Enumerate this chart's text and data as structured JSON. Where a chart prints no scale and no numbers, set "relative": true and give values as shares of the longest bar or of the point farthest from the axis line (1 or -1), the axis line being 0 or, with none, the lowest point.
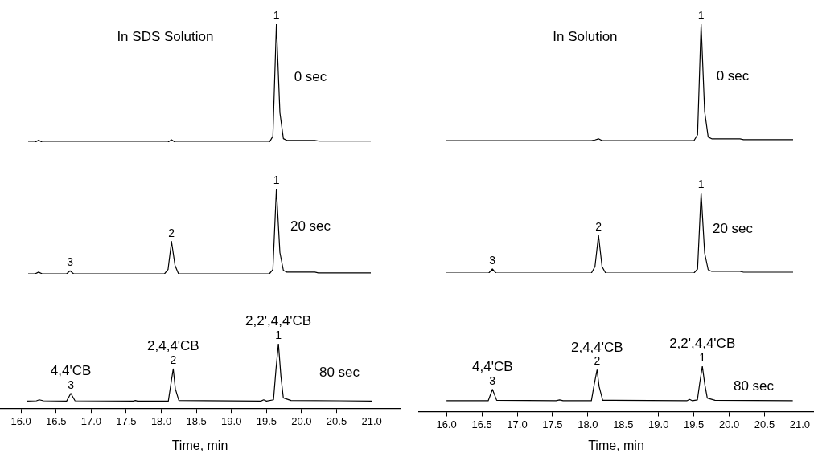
{
  "chart_data": [
    {
      "type": "line",
      "relative": true,
      "title": "In SDS Solution",
      "color": "#000000",
      "tick_labels": false,
      "categories": [
        null,
        null,
        null,
        null,
        null,
        null,
        null,
        null,
        null,
        null,
        null,
        null,
        null,
        null,
        null,
        null,
        null,
        null,
        null,
        null,
        null,
        null,
        null,
        null,
        null,
        null,
        null,
        null,
        null,
        null,
        null,
        null,
        null,
        null,
        null,
        null,
        null,
        null,
        null,
        null,
        null,
        null,
        null,
        null,
        null,
        null,
        null,
        null,
        null,
        null,
        null,
        null,
        null,
        null,
        null,
        null,
        null,
        null,
        null,
        null,
        null,
        null,
        null,
        null,
        null,
        null,
        null,
        null,
        null,
        null,
        null,
        null,
        null,
        null,
        null,
        null,
        null,
        null,
        null,
        null,
        null,
        null,
        null,
        null,
        null,
        null,
        null,
        null,
        null,
        null,
        null,
        null,
        null,
        null,
        null,
        null,
        null,
        null,
        null
      ],
      "values": [
        0,
        0,
        0,
        0.016,
        0,
        0,
        0,
        0,
        0,
        0,
        0,
        0,
        0,
        0,
        0,
        0,
        0,
        0,
        0,
        0,
        0,
        0,
        0,
        0,
        0,
        0,
        0,
        0,
        0,
        0,
        0,
        0,
        0,
        0,
        0,
        0,
        0,
        0,
        0,
        0,
        0,
        0.02,
        0,
        0,
        0,
        0,
        0,
        0,
        0,
        0,
        0,
        0,
        0,
        0,
        0,
        0,
        0,
        0,
        0,
        0,
        0,
        0,
        0,
        0,
        0,
        0,
        0,
        0,
        0,
        0,
        0.05,
        1,
        0.25,
        0.03,
        0.015,
        0.015,
        0.015,
        0.015,
        0.015,
        0.015,
        0.015,
        0.015,
        0.015,
        0.01,
        0.01,
        0.01,
        0.01,
        0.01,
        0.01,
        0.01,
        0.01,
        0.01,
        0.01,
        0.01,
        0.01,
        0.01,
        0.01,
        0.01,
        0.01
      ],
      "subtitle": "0 sec",
      "annotations": [
        "1"
      ]
    },
    {
      "type": "line",
      "relative": true,
      "color": "#000000",
      "tick_labels": false,
      "categories": [
        null,
        null,
        null,
        null,
        null,
        null,
        null,
        null,
        null,
        null,
        null,
        null,
        null,
        null,
        null,
        null,
        null,
        null,
        null,
        null,
        null,
        null,
        null,
        null,
        null,
        null,
        null,
        null,
        null,
        null,
        null,
        null,
        null,
        null,
        null,
        null,
        null,
        null,
        null,
        null,
        null,
        null,
        null,
        null,
        null,
        null,
        null,
        null,
        null,
        null,
        null,
        null,
        null,
        null,
        null,
        null,
        null,
        null,
        null,
        null,
        null,
        null,
        null,
        null,
        null,
        null,
        null,
        null,
        null,
        null,
        null,
        null,
        null,
        null,
        null,
        null,
        null,
        null,
        null,
        null,
        null,
        null,
        null,
        null,
        null,
        null,
        null,
        null,
        null,
        null,
        null,
        null,
        null,
        null,
        null,
        null,
        null,
        null,
        null
      ],
      "values": [
        0,
        0,
        0,
        0.02,
        0,
        0,
        0,
        0,
        0,
        0,
        0,
        0,
        0.035,
        0,
        0,
        0,
        0,
        0,
        0,
        0,
        0,
        0,
        0,
        0,
        0,
        0,
        0,
        0,
        0,
        0,
        0,
        0,
        0,
        0,
        0,
        0,
        0,
        0,
        0,
        0,
        0.05,
        0.38,
        0.1,
        0,
        0,
        0,
        0,
        0,
        0,
        0,
        0,
        0,
        0,
        0,
        0,
        0,
        0,
        0,
        0,
        0,
        0,
        0,
        0,
        0,
        0,
        0,
        0,
        0,
        0,
        0,
        0.05,
        1,
        0.25,
        0.04,
        0.02,
        0.02,
        0.02,
        0.02,
        0.02,
        0.02,
        0.02,
        0.02,
        0.02,
        0.01,
        0.01,
        0.01,
        0.01,
        0.01,
        0.01,
        0.01,
        0.01,
        0.01,
        0.01,
        0.01,
        0.01,
        0.01,
        0.01,
        0.01,
        0.01
      ],
      "subtitle": "20 sec",
      "annotations": [
        "1",
        "2",
        "3"
      ]
    },
    {
      "type": "line",
      "relative": true,
      "color": "#000000",
      "tick_labels": "x",
      "xlabel": "Time, min",
      "xlim": [
        15.7,
        21.4
      ],
      "xticks": [
        {
          "value": 16,
          "label": "16.0"
        },
        16.5,
        {
          "value": 17,
          "label": "17.0"
        },
        17.5,
        {
          "value": 18,
          "label": "18.0"
        },
        18.5,
        {
          "value": 19,
          "label": "19.0"
        },
        19.5,
        {
          "value": 20,
          "label": "20.0"
        },
        20.5,
        {
          "value": 21,
          "label": "21.0"
        }
      ],
      "x": [
        16.08,
        16.22,
        16.26,
        16.32,
        16.65,
        16.71,
        16.77,
        17.6,
        17.63,
        17.66,
        18.1,
        18.14,
        18.17,
        18.2,
        18.25,
        19.42,
        19.46,
        19.5,
        19.6,
        19.635,
        19.67,
        19.705,
        19.74,
        19.85,
        20.55,
        21.0
      ],
      "values": [
        0.11,
        0.115,
        0.13,
        0.115,
        0.11,
        0.23,
        0.115,
        0.11,
        0.12,
        0.11,
        0.11,
        0.4,
        0.61,
        0.3,
        0.12,
        0.11,
        0.13,
        0.11,
        0.13,
        0.6,
        1,
        0.5,
        0.16,
        0.12,
        0.115,
        0.11
      ],
      "subtitle": "80 sec",
      "annotations": [
        "1",
        "2",
        "3",
        {
          "text": "2,2',4,4'CB",
          "x": 19.67,
          "y": 1
        },
        {
          "text": "2,4,4'CB",
          "x": 18.17,
          "y": 0.61
        },
        {
          "text": "4,4'CB",
          "x": 16.71,
          "y": 0.23
        }
      ]
    },
    {
      "type": "line",
      "relative": true,
      "title": "In Solution",
      "color": "#000000",
      "tick_labels": false,
      "categories": [
        null,
        null,
        null,
        null,
        null,
        null,
        null,
        null,
        null,
        null,
        null,
        null,
        null,
        null,
        null,
        null,
        null,
        null,
        null,
        null,
        null,
        null,
        null,
        null,
        null,
        null,
        null,
        null,
        null,
        null,
        null,
        null,
        null,
        null,
        null,
        null,
        null,
        null,
        null,
        null,
        null,
        null,
        null,
        null,
        null,
        null,
        null,
        null,
        null,
        null,
        null,
        null,
        null,
        null,
        null,
        null,
        null,
        null,
        null,
        null,
        null,
        null,
        null,
        null,
        null,
        null,
        null,
        null,
        null,
        null,
        null,
        null,
        null,
        null,
        null,
        null,
        null,
        null,
        null,
        null,
        null,
        null,
        null,
        null,
        null,
        null,
        null,
        null,
        null,
        null,
        null,
        null,
        null,
        null,
        null,
        null,
        null,
        null,
        null
      ],
      "values": [
        0,
        0,
        0,
        0,
        0,
        0,
        0,
        0,
        0,
        0,
        0,
        0,
        0,
        0,
        0,
        0,
        0,
        0,
        0,
        0,
        0,
        0,
        0,
        0,
        0,
        0,
        0,
        0,
        0,
        0,
        0,
        0,
        0,
        0,
        0,
        0,
        0,
        0,
        0,
        0,
        0,
        0,
        0.005,
        0.015,
        0,
        0,
        0,
        0,
        0,
        0,
        0,
        0,
        0,
        0,
        0,
        0,
        0,
        0,
        0,
        0,
        0,
        0,
        0,
        0,
        0,
        0,
        0,
        0,
        0,
        0,
        0,
        0.05,
        1,
        0.25,
        0.03,
        0.015,
        0.015,
        0.015,
        0.015,
        0.015,
        0.015,
        0.015,
        0.015,
        0.015,
        0.008,
        0.008,
        0.008,
        0.008,
        0.008,
        0.008,
        0.008,
        0.008,
        0.008,
        0.008,
        0.008,
        0.008,
        0.008,
        0.008,
        0.008
      ],
      "subtitle": "0 sec",
      "annotations": [
        "1"
      ]
    },
    {
      "type": "line",
      "relative": true,
      "color": "#000000",
      "tick_labels": false,
      "categories": [
        null,
        null,
        null,
        null,
        null,
        null,
        null,
        null,
        null,
        null,
        null,
        null,
        null,
        null,
        null,
        null,
        null,
        null,
        null,
        null,
        null,
        null,
        null,
        null,
        null,
        null,
        null,
        null,
        null,
        null,
        null,
        null,
        null,
        null,
        null,
        null,
        null,
        null,
        null,
        null,
        null,
        null,
        null,
        null,
        null,
        null,
        null,
        null,
        null,
        null,
        null,
        null,
        null,
        null,
        null,
        null,
        null,
        null,
        null,
        null,
        null,
        null,
        null,
        null,
        null,
        null,
        null,
        null,
        null,
        null,
        null,
        null,
        null,
        null,
        null,
        null,
        null,
        null,
        null,
        null,
        null,
        null,
        null,
        null,
        null,
        null,
        null,
        null,
        null,
        null,
        null,
        null,
        null,
        null,
        null,
        null,
        null,
        null,
        null
      ],
      "values": [
        0,
        0,
        0,
        0,
        0,
        0,
        0,
        0,
        0,
        0,
        0,
        0,
        0,
        0.05,
        0,
        0,
        0,
        0,
        0,
        0,
        0,
        0,
        0,
        0,
        0,
        0,
        0,
        0,
        0,
        0,
        0,
        0,
        0,
        0,
        0,
        0,
        0,
        0,
        0,
        0,
        0,
        0,
        0.08,
        0.47,
        0.08,
        0,
        0,
        0,
        0,
        0,
        0,
        0,
        0,
        0,
        0,
        0,
        0,
        0,
        0,
        0,
        0,
        0,
        0,
        0,
        0,
        0,
        0,
        0,
        0,
        0,
        0,
        0.05,
        1,
        0.25,
        0.04,
        0.02,
        0.02,
        0.02,
        0.02,
        0.02,
        0.02,
        0.02,
        0.02,
        0.02,
        0.01,
        0.01,
        0.01,
        0.01,
        0.01,
        0.01,
        0.01,
        0.01,
        0.01,
        0.01,
        0.01,
        0.01,
        0.01,
        0.01,
        0.01
      ],
      "subtitle": "20 sec",
      "annotations": [
        "1",
        "2",
        "3"
      ]
    },
    {
      "type": "line",
      "relative": true,
      "color": "#000000",
      "tick_labels": "x",
      "xlabel": "Time, min",
      "xlim": [
        15.6,
        21.2
      ],
      "xticks": [
        {
          "value": 16,
          "label": "16.0"
        },
        16.5,
        {
          "value": 17,
          "label": "17.0"
        },
        17.5,
        {
          "value": 18,
          "label": "18.0"
        },
        18.5,
        {
          "value": 19,
          "label": "19.0"
        },
        19.5,
        {
          "value": 20,
          "label": "20.0"
        },
        20.5,
        {
          "value": 21,
          "label": "21.0"
        }
      ],
      "x": [
        16.0,
        16.59,
        16.65,
        16.71,
        17.55,
        17.6,
        17.65,
        18.05,
        18.09,
        18.13,
        18.16,
        18.21,
        19.4,
        19.44,
        19.48,
        19.55,
        19.585,
        19.62,
        19.655,
        19.69,
        19.8,
        20.9
      ],
      "values": [
        0.24,
        0.24,
        0.49,
        0.25,
        0.24,
        0.26,
        0.24,
        0.24,
        0.6,
        0.92,
        0.55,
        0.25,
        0.24,
        0.27,
        0.24,
        0.26,
        0.65,
        1,
        0.6,
        0.3,
        0.25,
        0.24
      ],
      "subtitle": "80 sec",
      "annotations": [
        "1",
        "2",
        "3",
        {
          "text": "2,2',4,4'CB",
          "x": 19.62,
          "y": 1
        },
        {
          "text": "2,4,4'CB",
          "x": 18.13,
          "y": 0.92
        },
        {
          "text": "4,4'CB",
          "x": 16.65,
          "y": 0.49
        }
      ]
    }
  ]
}
